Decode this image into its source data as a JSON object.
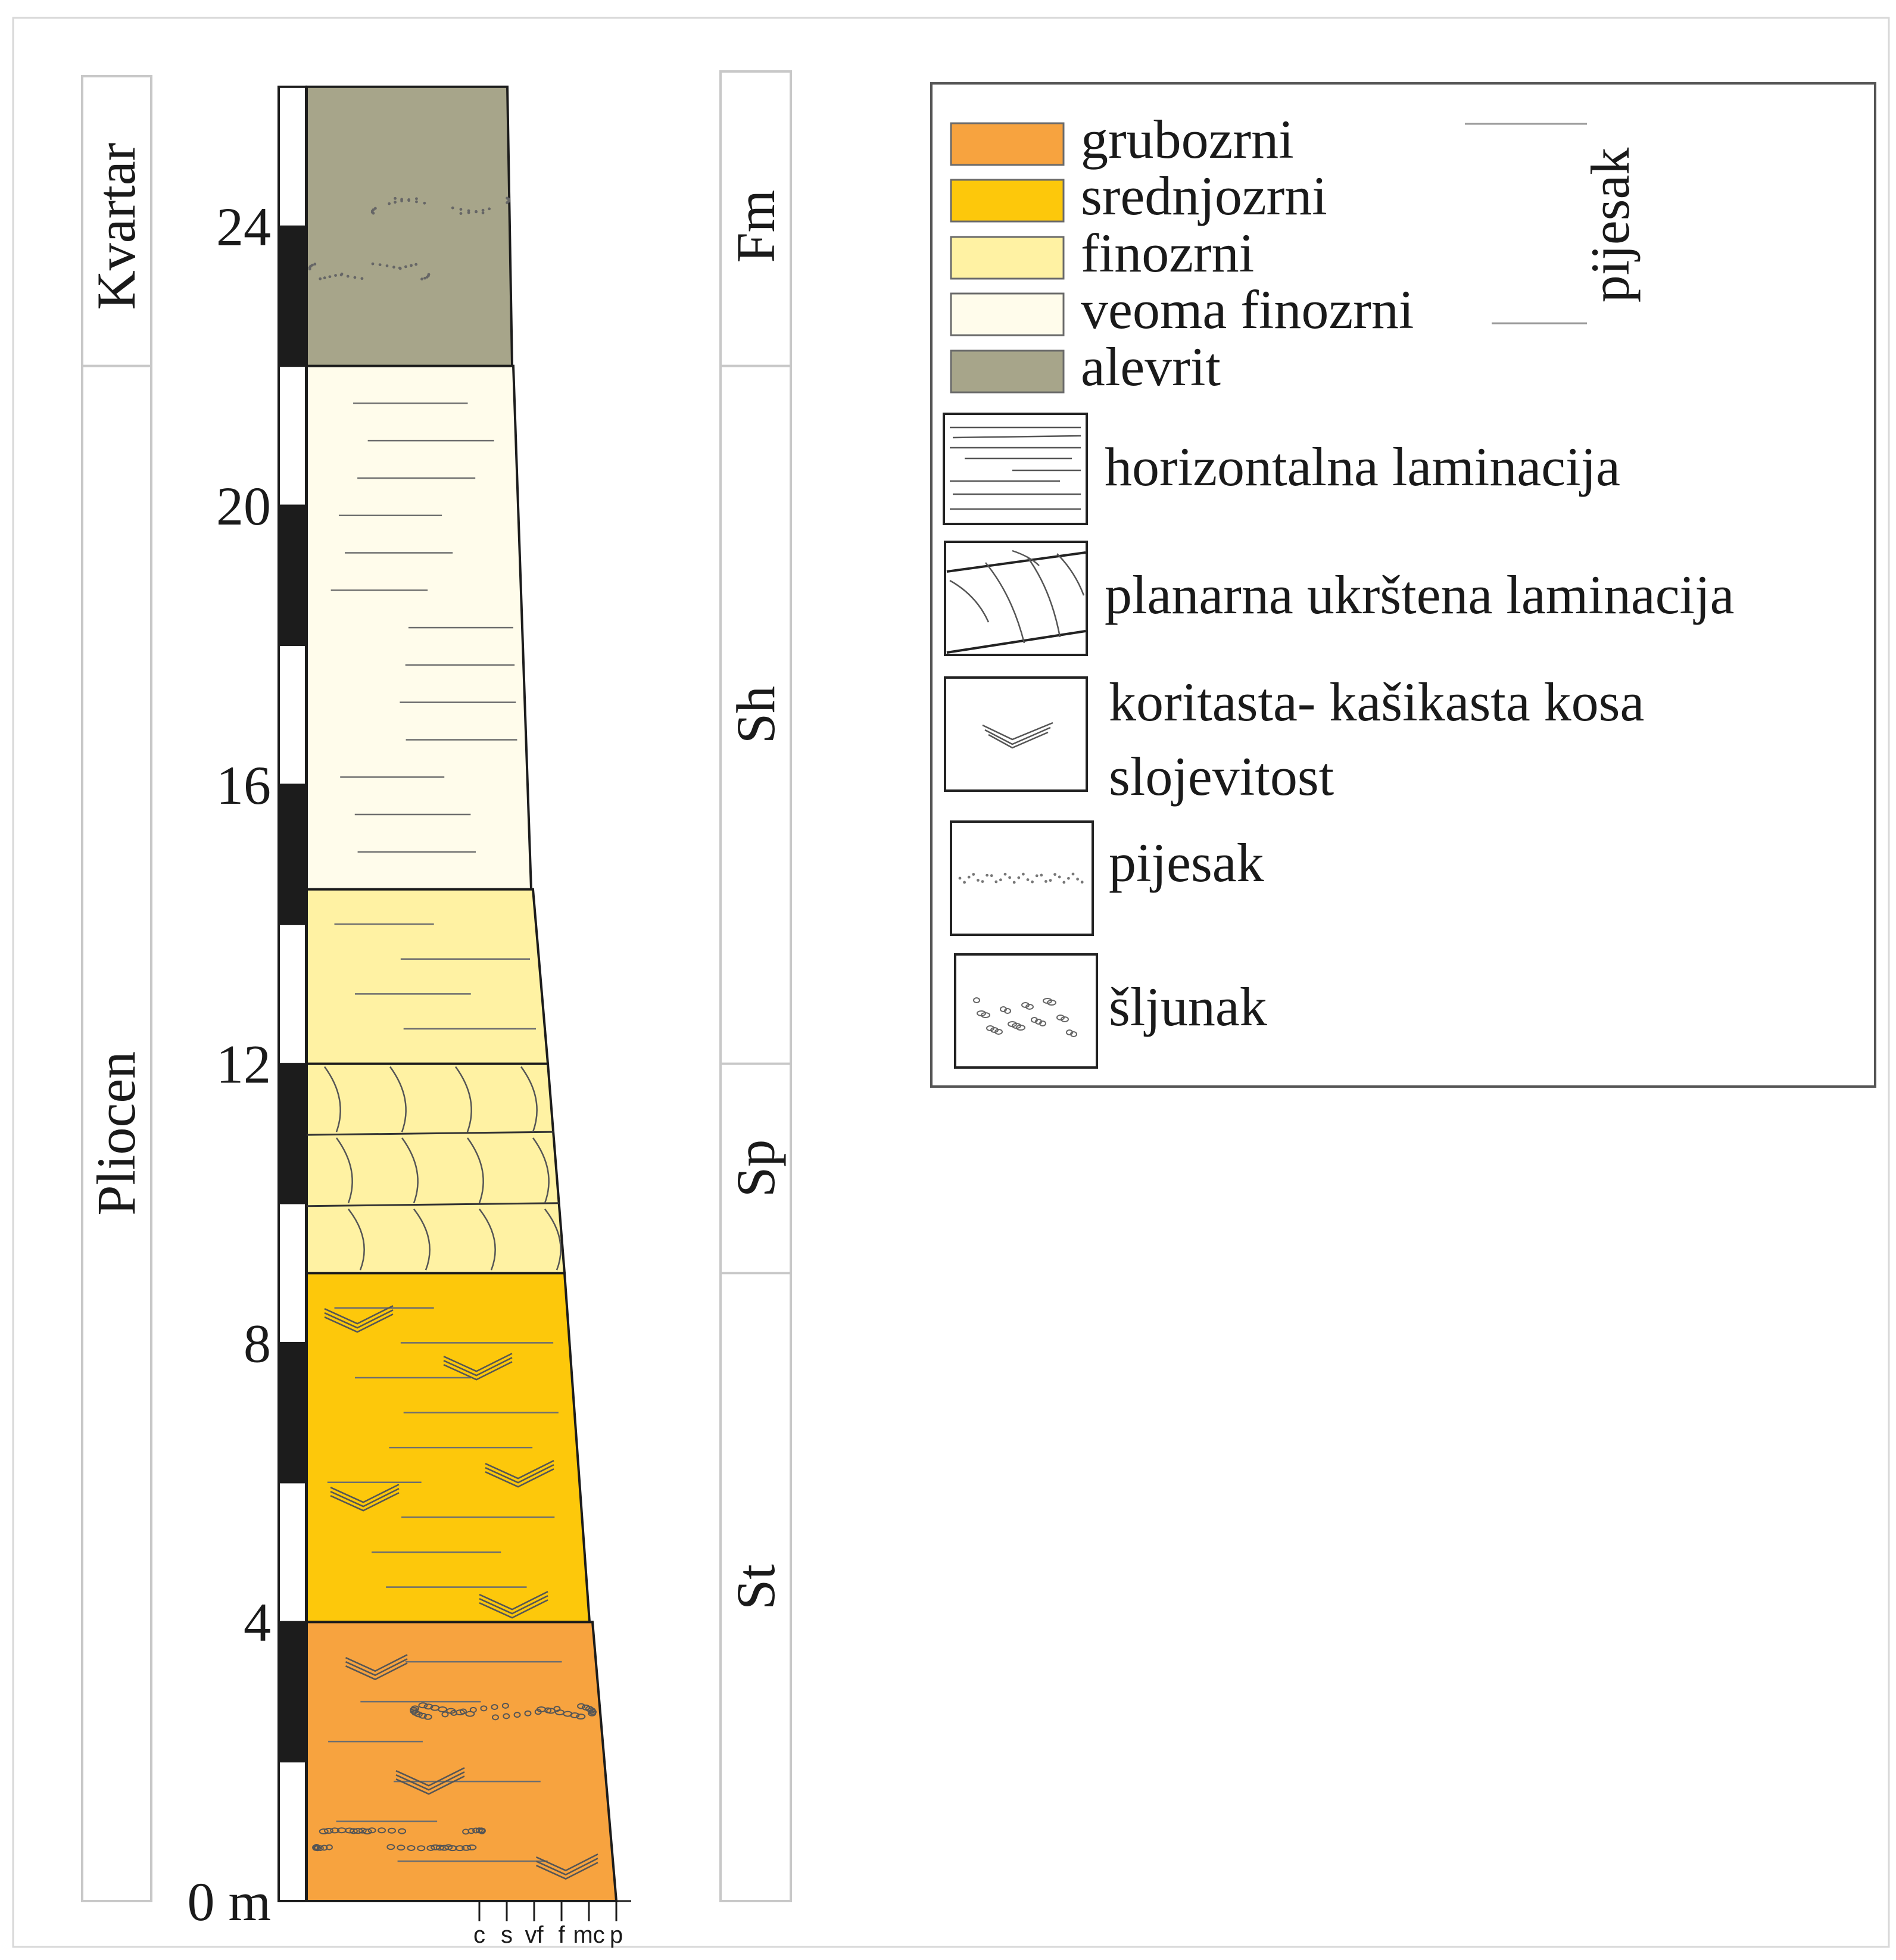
{
  "colors": {
    "grubozrni": "#F7A33F",
    "srednjozrni": "#FDC80B",
    "finozrni": "#FFF2A3",
    "veoma_finozrni": "#FFFCEB",
    "alevrit": "#A7A58A",
    "ink": "#1a1a1a",
    "lamina": "#6e6e6e"
  },
  "depth_unit": "m",
  "depth_labels": [
    {
      "value": 0,
      "text": "0 m"
    },
    {
      "value": 4,
      "text": "4"
    },
    {
      "value": 8,
      "text": "8"
    },
    {
      "value": 12,
      "text": "12"
    },
    {
      "value": 16,
      "text": "16"
    },
    {
      "value": 20,
      "text": "20"
    },
    {
      "value": 24,
      "text": "24"
    }
  ],
  "periods": [
    {
      "name": "Pliocen",
      "bottom_m": 0,
      "top_m": 22
    },
    {
      "name": "Kvartar",
      "bottom_m": 22,
      "top_m": 26
    }
  ],
  "facies": [
    {
      "code": "St",
      "bottom_m": 0,
      "top_m": 9
    },
    {
      "code": "Sp",
      "bottom_m": 9,
      "top_m": 12
    },
    {
      "code": "Sh",
      "bottom_m": 12,
      "top_m": 22
    },
    {
      "code": "Fm",
      "bottom_m": 22,
      "top_m": 26
    }
  ],
  "beds": [
    {
      "lithology": "grubozrni",
      "bottom_m": 0,
      "top_m": 4,
      "structure": "trough_cross_gravel"
    },
    {
      "lithology": "srednjozrni",
      "bottom_m": 4,
      "top_m": 9,
      "structure": "trough_cross"
    },
    {
      "lithology": "finozrni",
      "bottom_m": 9,
      "top_m": 12,
      "structure": "planar_cross"
    },
    {
      "lithology": "finozrni",
      "bottom_m": 12,
      "top_m": 14.5,
      "structure": "horizontal"
    },
    {
      "lithology": "veoma_finozrni",
      "bottom_m": 14.5,
      "top_m": 22,
      "structure": "horizontal"
    },
    {
      "lithology": "alevrit",
      "bottom_m": 22,
      "top_m": 26,
      "structure": "sand_lenses"
    }
  ],
  "grain_size_scale": [
    "c",
    "s",
    "vf",
    "f",
    "mc",
    "p"
  ],
  "legend": {
    "lithology_items": [
      {
        "key": "grubozrni",
        "label": "grubozrni"
      },
      {
        "key": "srednjozrni",
        "label": "srednjozrni"
      },
      {
        "key": "finozrni",
        "label": "finozrni"
      },
      {
        "key": "veoma_finozrni",
        "label": "veoma finozrni"
      },
      {
        "key": "alevrit",
        "label": "alevrit"
      }
    ],
    "bracket_label": "pijesak",
    "structure_items": [
      {
        "icon": "horizontal-lamination-icon",
        "label": "horizontalna laminacija"
      },
      {
        "icon": "planar-cross-lamination-icon",
        "label": "planarna ukrštena laminacija"
      },
      {
        "icon": "trough-cross-bedding-icon",
        "label_line1": "koritasta- kašikasta kosa",
        "label_line2": "slojevitost"
      },
      {
        "icon": "sand-icon",
        "label": "pijesak"
      },
      {
        "icon": "gravel-icon",
        "label": "šljunak"
      }
    ]
  }
}
